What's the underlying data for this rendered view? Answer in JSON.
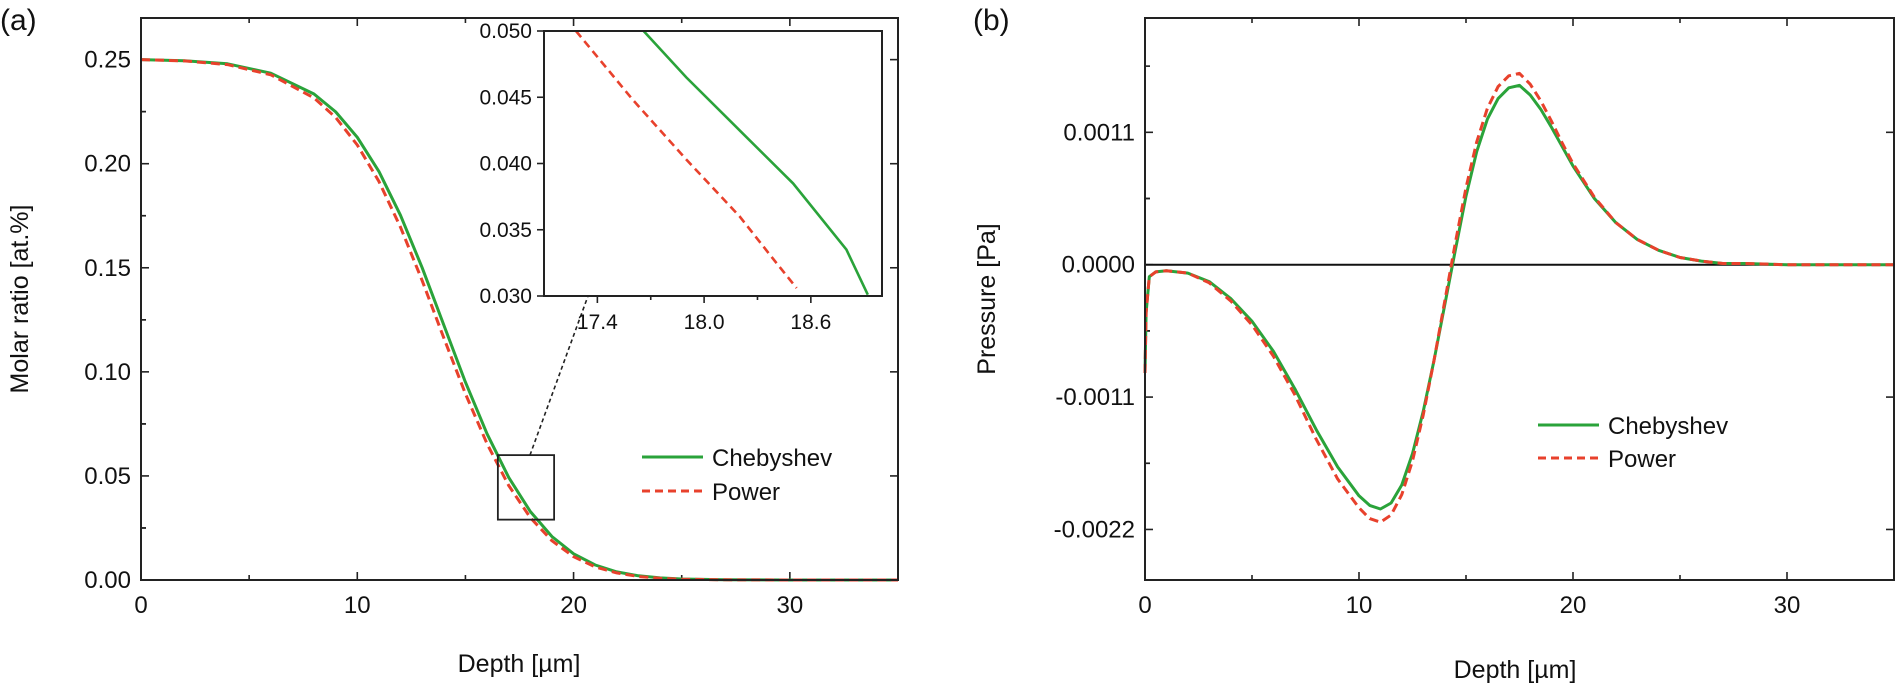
{
  "chart_data": [
    {
      "panel_label": "(a)",
      "type": "line",
      "xlabel": "Depth [µm]",
      "ylabel": "Molar ratio [at.%]",
      "xlim": [
        0,
        35
      ],
      "ylim": [
        0,
        0.27
      ],
      "x_ticks": [
        0,
        10,
        20,
        30
      ],
      "x_tick_labels": [
        "0",
        "10",
        "20",
        "30"
      ],
      "y_ticks": [
        0,
        0.05,
        0.1,
        0.15,
        0.2,
        0.25
      ],
      "y_tick_labels": [
        "0.00",
        "0.05",
        "0.10",
        "0.15",
        "0.20",
        "0.25"
      ],
      "legend": {
        "position": "center-right",
        "entries": [
          "Chebyshev",
          "Power"
        ]
      },
      "series": [
        {
          "name": "Chebyshev",
          "style": "solid",
          "color": "#2aa33a",
          "x": [
            0,
            2,
            4,
            6,
            8,
            9,
            10,
            11,
            12,
            13,
            14,
            15,
            16,
            17,
            18,
            19,
            20,
            21,
            22,
            23,
            24,
            25,
            27,
            30,
            35
          ],
          "y": [
            0.25,
            0.2495,
            0.248,
            0.2435,
            0.2335,
            0.2249,
            0.2127,
            0.1963,
            0.1752,
            0.15,
            0.1225,
            0.0951,
            0.0702,
            0.0493,
            0.0329,
            0.0209,
            0.0126,
            0.0072,
            0.0039,
            0.002,
            0.001,
            0.0005,
            0.0001,
            0,
            0
          ]
        },
        {
          "name": "Power",
          "style": "dashed",
          "color": "#e8412c",
          "x": [
            0,
            2,
            4,
            6,
            8,
            9,
            10,
            11,
            12,
            13,
            14,
            15,
            16,
            17,
            18,
            19,
            20,
            21,
            22,
            23,
            24,
            25,
            27,
            30,
            35
          ],
          "y": [
            0.25,
            0.2494,
            0.2476,
            0.2427,
            0.2316,
            0.2222,
            0.209,
            0.1915,
            0.1695,
            0.1438,
            0.1163,
            0.0895,
            0.0654,
            0.0454,
            0.03,
            0.0189,
            0.0112,
            0.0063,
            0.0034,
            0.0017,
            0.0008,
            0.0004,
            0.0001,
            0,
            0
          ]
        }
      ],
      "zoom_box": {
        "x": [
          16.5,
          19.1
        ],
        "y": [
          0.029,
          0.06
        ]
      },
      "inset": {
        "xlim": [
          17.1,
          19.0
        ],
        "ylim": [
          0.03,
          0.05
        ],
        "x_ticks": [
          17.4,
          18.0,
          18.6
        ],
        "x_tick_labels": [
          "17.4",
          "18.0",
          "18.6"
        ],
        "y_ticks": [
          0.03,
          0.035,
          0.04,
          0.045,
          0.05
        ],
        "y_tick_labels": [
          "0.030",
          "0.035",
          "0.040",
          "0.045",
          "0.050"
        ],
        "series": [
          {
            "name": "Chebyshev",
            "x": [
              17.66,
              17.9,
              18.2,
              18.5,
              18.8,
              18.92
            ],
            "y": [
              0.05,
              0.0465,
              0.0425,
              0.0385,
              0.0335,
              0.0301
            ]
          },
          {
            "name": "Power",
            "x": [
              17.28,
              17.6,
              17.9,
              18.2,
              18.4,
              18.52
            ],
            "y": [
              0.05,
              0.0448,
              0.0403,
              0.036,
              0.0326,
              0.0306
            ]
          }
        ]
      }
    },
    {
      "panel_label": "(b)",
      "type": "line",
      "xlabel": "Depth [µm]",
      "ylabel": "Pressure [Pa]",
      "xlim": [
        0,
        35
      ],
      "ylim": [
        -0.00262,
        0.00205
      ],
      "x_ticks": [
        0,
        10,
        20,
        30
      ],
      "x_tick_labels": [
        "0",
        "10",
        "20",
        "30"
      ],
      "y_ticks": [
        -0.0022,
        -0.0011,
        0.0,
        0.0011
      ],
      "y_tick_labels": [
        "-0.0022",
        "-0.0011",
        "0.0000",
        "0.0011"
      ],
      "reference_line": 0,
      "legend": {
        "position": "lower-center",
        "entries": [
          "Chebyshev",
          "Power"
        ]
      },
      "series": [
        {
          "name": "Chebyshev",
          "style": "solid",
          "color": "#2aa33a",
          "x": [
            0,
            0.05,
            0.2,
            0.5,
            1,
            2,
            3,
            4,
            5,
            6,
            7,
            8,
            9,
            10,
            10.5,
            11,
            11.5,
            12,
            12.5,
            13,
            13.5,
            14,
            14.5,
            15,
            15.5,
            16,
            16.5,
            17,
            17.5,
            18,
            18.5,
            19,
            19.5,
            20,
            21,
            22,
            23,
            24,
            25,
            26,
            27,
            28,
            30,
            35
          ],
          "y": [
            -0.0009,
            -0.0004,
            -0.0001,
            -6e-05,
            -5e-05,
            -7e-05,
            -0.00014,
            -0.00028,
            -0.00047,
            -0.00072,
            -0.00103,
            -0.00137,
            -0.00168,
            -0.00192,
            -0.002,
            -0.00203,
            -0.00198,
            -0.00183,
            -0.00157,
            -0.00122,
            -0.0008,
            -0.00034,
            0.00012,
            0.00057,
            0.00094,
            0.00121,
            0.00138,
            0.00147,
            0.00149,
            0.00141,
            0.00129,
            0.00114,
            0.00098,
            0.00082,
            0.00055,
            0.00035,
            0.00021,
            0.00012,
            6e-05,
            3e-05,
            1e-05,
            1e-05,
            0,
            0
          ]
        },
        {
          "name": "Power",
          "style": "dashed",
          "color": "#e8412c",
          "x": [
            0,
            0.05,
            0.2,
            0.5,
            1,
            2,
            3,
            4,
            5,
            6,
            7,
            8,
            9,
            10,
            10.5,
            11,
            11.5,
            12,
            12.5,
            13,
            13.5,
            14,
            14.5,
            15,
            15.5,
            16,
            16.5,
            17,
            17.5,
            18,
            18.5,
            19,
            19.5,
            20,
            21,
            22,
            23,
            24,
            25,
            26,
            27,
            28,
            30,
            35
          ],
          "y": [
            -0.0009,
            -0.0004,
            -0.0001,
            -6e-05,
            -5e-05,
            -7e-05,
            -0.00015,
            -0.0003,
            -0.0005,
            -0.00076,
            -0.00108,
            -0.00145,
            -0.00178,
            -0.00202,
            -0.00211,
            -0.00214,
            -0.00208,
            -0.00191,
            -0.00163,
            -0.00125,
            -0.0008,
            -0.00031,
            0.00018,
            0.00064,
            0.00102,
            0.0013,
            0.00148,
            0.00157,
            0.00159,
            0.0015,
            0.00136,
            0.00119,
            0.00101,
            0.00084,
            0.00056,
            0.00035,
            0.00021,
            0.00012,
            6e-05,
            3e-05,
            1e-05,
            1e-05,
            0,
            0
          ]
        }
      ]
    }
  ]
}
